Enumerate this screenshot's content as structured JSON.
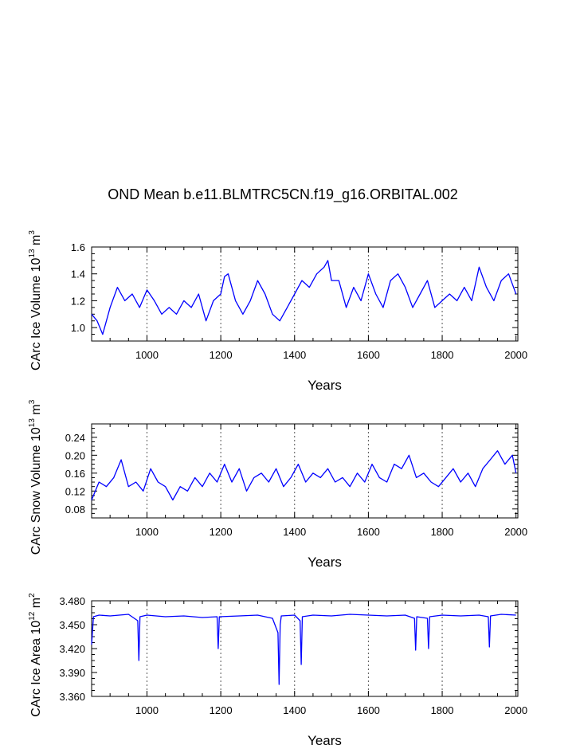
{
  "title": "OND Mean b.e11.BLMTRC5CN.f19_g16.ORBITAL.002",
  "chart_data": [
    {
      "type": "line",
      "name": "ice-volume",
      "ylabel": "CArc Ice Volume 10",
      "yexp": "13",
      "yunit": "m",
      "yunitexp": "3",
      "xlabel": "Years",
      "xlim": [
        850,
        2005
      ],
      "ylim": [
        0.9,
        1.6
      ],
      "xticks": [
        1000,
        1200,
        1400,
        1600,
        1800,
        2000
      ],
      "xtick_labels": [
        "1000",
        "1200",
        "1400",
        "1600",
        "1800",
        "2000"
      ],
      "yticks": [
        1.0,
        1.2,
        1.4,
        1.6
      ],
      "ytick_labels": [
        "1.0",
        "1.2",
        "1.4",
        "1.6"
      ],
      "color": "#0000ff",
      "series": [
        {
          "name": "CArc Ice Volume",
          "x": [
            850,
            865,
            880,
            900,
            920,
            940,
            960,
            980,
            1000,
            1020,
            1040,
            1060,
            1080,
            1100,
            1120,
            1140,
            1160,
            1180,
            1200,
            1210,
            1220,
            1240,
            1260,
            1280,
            1300,
            1320,
            1340,
            1360,
            1380,
            1400,
            1420,
            1440,
            1460,
            1480,
            1490,
            1500,
            1520,
            1540,
            1560,
            1580,
            1600,
            1620,
            1640,
            1660,
            1680,
            1700,
            1720,
            1740,
            1760,
            1780,
            1800,
            1820,
            1840,
            1860,
            1880,
            1900,
            1920,
            1940,
            1960,
            1980,
            2000
          ],
          "values": [
            1.1,
            1.05,
            0.95,
            1.15,
            1.3,
            1.2,
            1.25,
            1.15,
            1.28,
            1.2,
            1.1,
            1.15,
            1.1,
            1.2,
            1.15,
            1.25,
            1.05,
            1.2,
            1.25,
            1.38,
            1.4,
            1.2,
            1.1,
            1.2,
            1.35,
            1.25,
            1.1,
            1.05,
            1.15,
            1.25,
            1.35,
            1.3,
            1.4,
            1.45,
            1.5,
            1.35,
            1.35,
            1.15,
            1.3,
            1.2,
            1.4,
            1.25,
            1.15,
            1.35,
            1.4,
            1.3,
            1.15,
            1.25,
            1.35,
            1.15,
            1.2,
            1.25,
            1.2,
            1.3,
            1.2,
            1.45,
            1.3,
            1.2,
            1.35,
            1.4,
            1.25
          ]
        }
      ]
    },
    {
      "type": "line",
      "name": "snow-volume",
      "ylabel": "CArc Snow Volume 10",
      "yexp": "13",
      "yunit": "m",
      "yunitexp": "3",
      "xlabel": "Years",
      "xlim": [
        850,
        2005
      ],
      "ylim": [
        0.06,
        0.27
      ],
      "xticks": [
        1000,
        1200,
        1400,
        1600,
        1800,
        2000
      ],
      "xtick_labels": [
        "1000",
        "1200",
        "1400",
        "1600",
        "1800",
        "2000"
      ],
      "yticks": [
        0.08,
        0.12,
        0.16,
        0.2,
        0.24
      ],
      "ytick_labels": [
        "0.08",
        "0.12",
        "0.16",
        "0.20",
        "0.24"
      ],
      "color": "#0000ff",
      "series": [
        {
          "name": "CArc Snow Volume",
          "x": [
            850,
            870,
            890,
            910,
            930,
            950,
            970,
            990,
            1010,
            1030,
            1050,
            1070,
            1090,
            1110,
            1130,
            1150,
            1170,
            1190,
            1210,
            1230,
            1250,
            1270,
            1290,
            1310,
            1330,
            1350,
            1370,
            1390,
            1410,
            1430,
            1450,
            1470,
            1490,
            1510,
            1530,
            1550,
            1570,
            1590,
            1610,
            1630,
            1650,
            1670,
            1690,
            1710,
            1730,
            1750,
            1770,
            1790,
            1810,
            1830,
            1850,
            1870,
            1890,
            1910,
            1930,
            1950,
            1970,
            1990,
            2000
          ],
          "values": [
            0.1,
            0.14,
            0.13,
            0.15,
            0.19,
            0.13,
            0.14,
            0.12,
            0.17,
            0.14,
            0.13,
            0.1,
            0.13,
            0.12,
            0.15,
            0.13,
            0.16,
            0.14,
            0.18,
            0.14,
            0.17,
            0.12,
            0.15,
            0.16,
            0.14,
            0.17,
            0.13,
            0.15,
            0.18,
            0.14,
            0.16,
            0.15,
            0.17,
            0.14,
            0.15,
            0.13,
            0.16,
            0.14,
            0.18,
            0.15,
            0.14,
            0.18,
            0.17,
            0.2,
            0.15,
            0.16,
            0.14,
            0.13,
            0.15,
            0.17,
            0.14,
            0.16,
            0.13,
            0.17,
            0.19,
            0.21,
            0.18,
            0.2,
            0.16
          ]
        }
      ]
    },
    {
      "type": "line",
      "name": "ice-area",
      "ylabel": "CArc Ice Area 10",
      "yexp": "12",
      "yunit": "m",
      "yunitexp": "2",
      "xlabel": "Years",
      "xlim": [
        850,
        2005
      ],
      "ylim": [
        3.36,
        3.48
      ],
      "xticks": [
        1000,
        1200,
        1400,
        1600,
        1800,
        2000
      ],
      "xtick_labels": [
        "1000",
        "1200",
        "1400",
        "1600",
        "1800",
        "2000"
      ],
      "yticks": [
        3.36,
        3.39,
        3.42,
        3.45,
        3.48
      ],
      "ytick_labels": [
        "3.360",
        "3.390",
        "3.420",
        "3.450",
        "3.480"
      ],
      "color": "#0000ff",
      "series": [
        {
          "name": "CArc Ice Area",
          "x": [
            850,
            855,
            870,
            900,
            950,
            975,
            978,
            981,
            1000,
            1050,
            1100,
            1150,
            1190,
            1193,
            1196,
            1250,
            1300,
            1340,
            1355,
            1358,
            1361,
            1364,
            1400,
            1415,
            1418,
            1421,
            1450,
            1500,
            1550,
            1600,
            1650,
            1700,
            1725,
            1728,
            1731,
            1760,
            1763,
            1766,
            1800,
            1850,
            1900,
            1925,
            1928,
            1931,
            1960,
            2000
          ],
          "values": [
            3.425,
            3.46,
            3.462,
            3.461,
            3.463,
            3.455,
            3.405,
            3.46,
            3.462,
            3.46,
            3.461,
            3.459,
            3.46,
            3.42,
            3.46,
            3.461,
            3.462,
            3.458,
            3.44,
            3.375,
            3.45,
            3.461,
            3.462,
            3.455,
            3.4,
            3.46,
            3.462,
            3.461,
            3.463,
            3.462,
            3.461,
            3.462,
            3.458,
            3.418,
            3.46,
            3.458,
            3.42,
            3.46,
            3.462,
            3.461,
            3.462,
            3.46,
            3.422,
            3.461,
            3.463,
            3.462
          ]
        }
      ]
    }
  ]
}
